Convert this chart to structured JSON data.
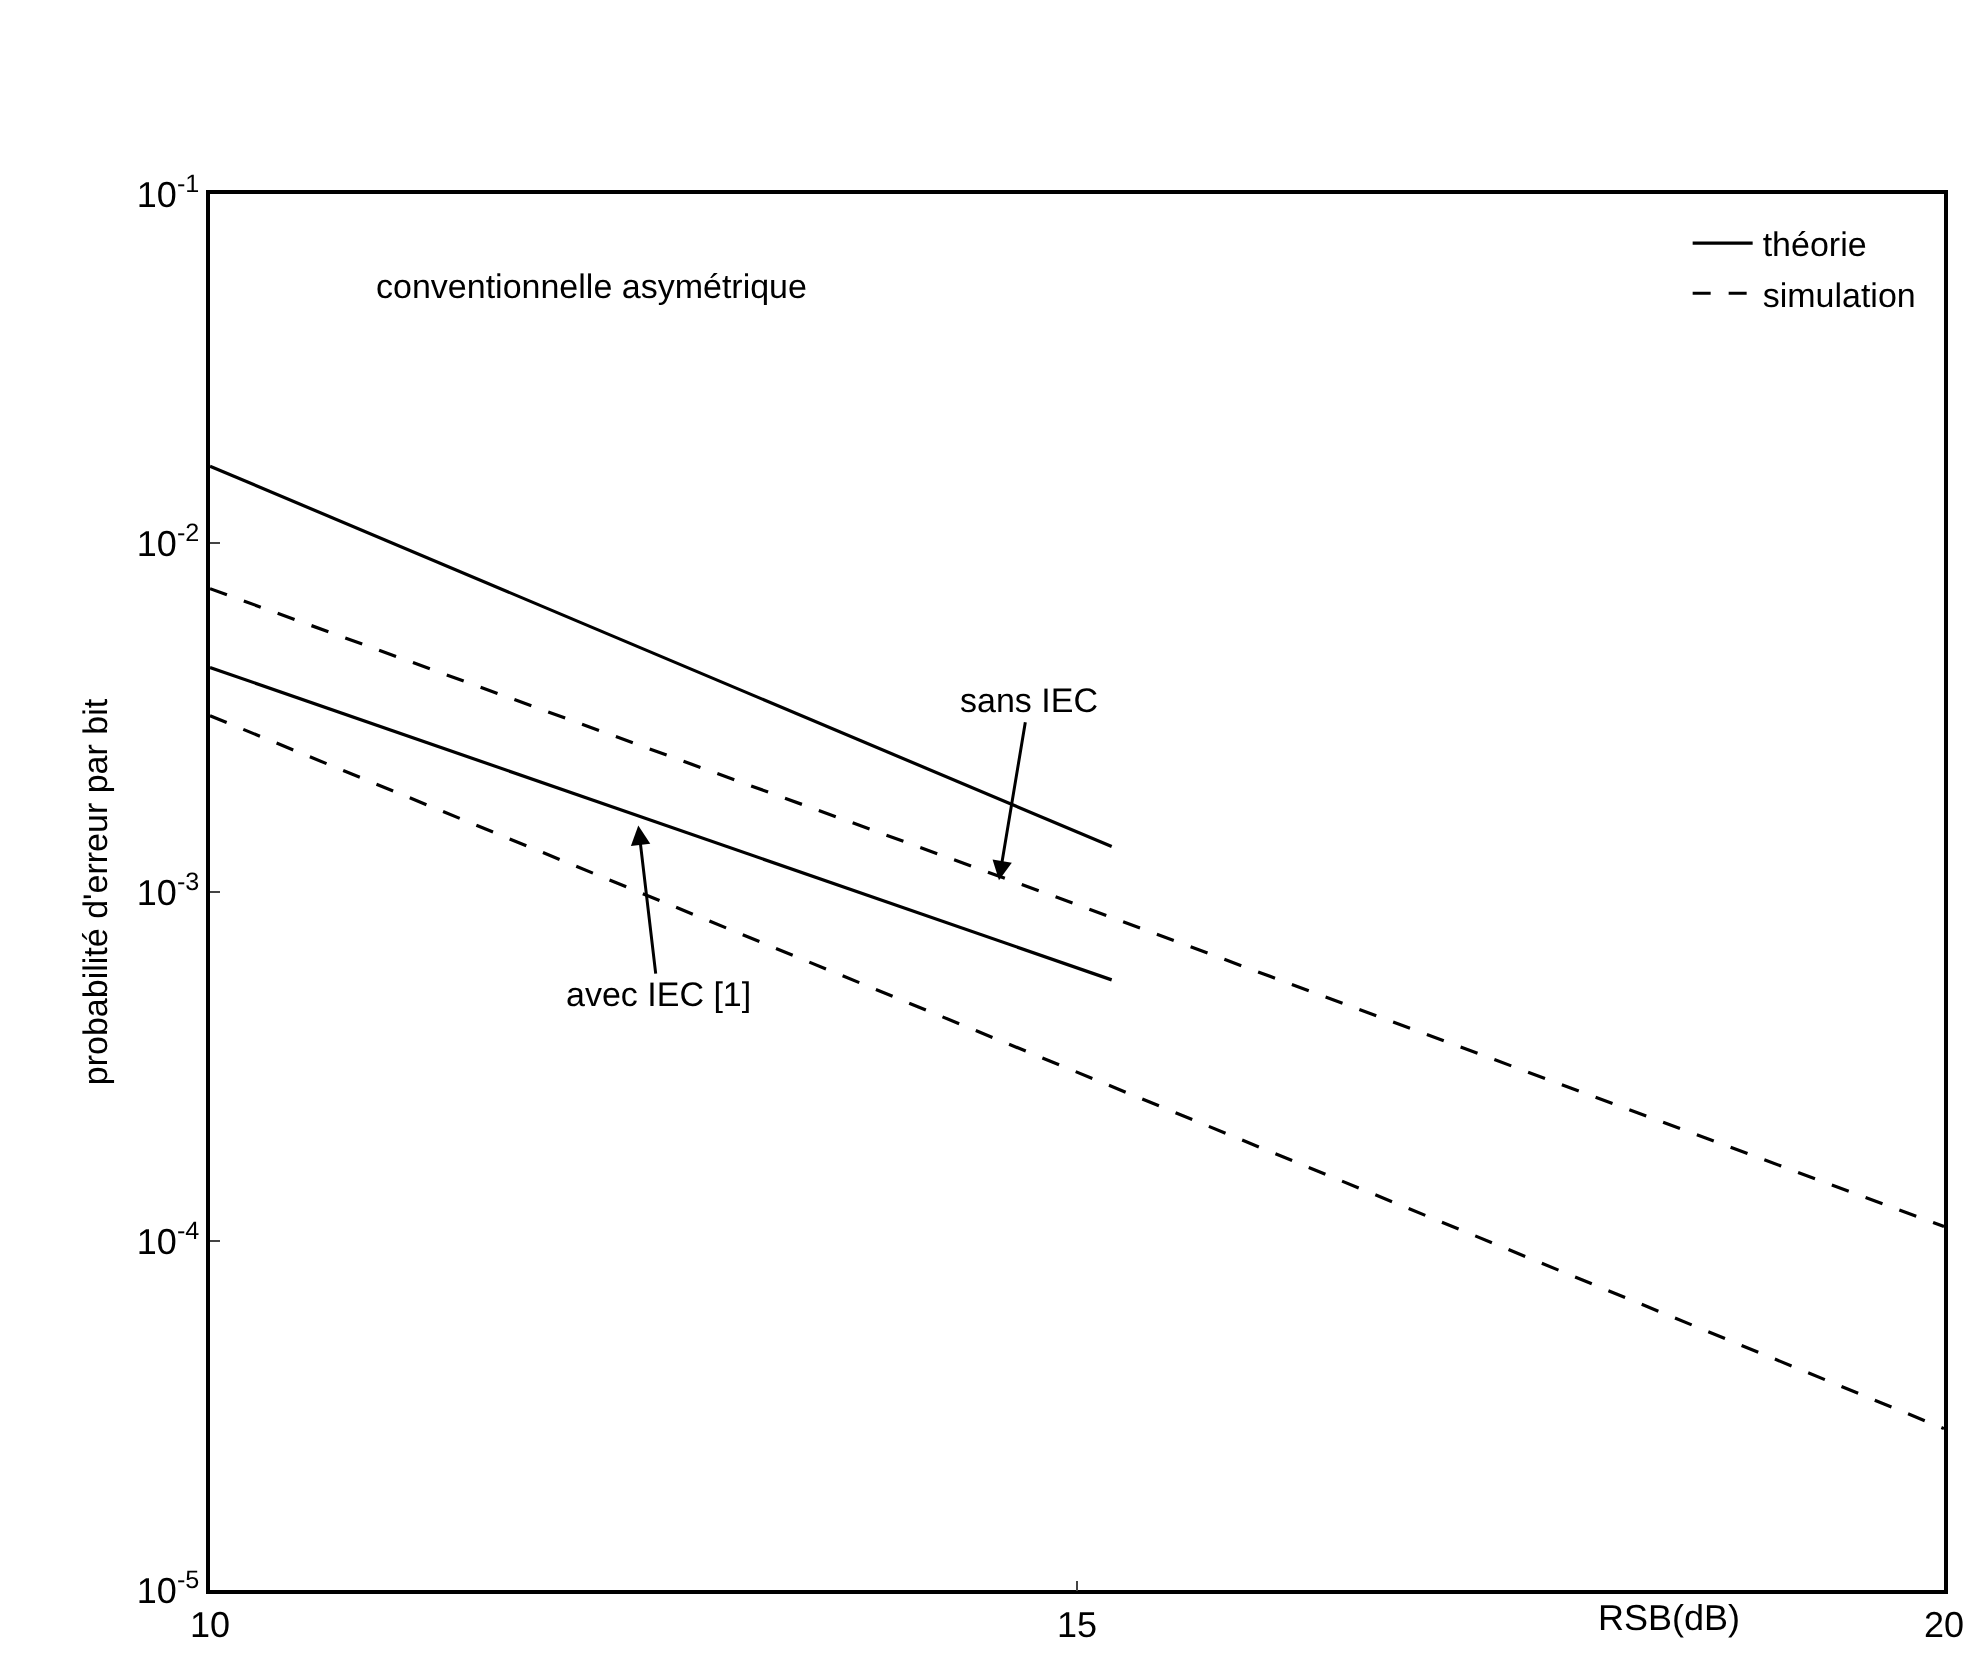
{
  "chart_data": {
    "type": "line",
    "title": "conventionnelle asymétrique",
    "xlabel": "RSB(dB)",
    "ylabel": "probabilité d'erreur par bit",
    "series": [
      {
        "name": "théorie",
        "color": "#000000",
        "line_style": "solid",
        "x": [
          10,
          15.2
        ],
        "values": [
          0.0166,
          0.00135
        ]
      },
      {
        "name": "simulation",
        "color": "#000000",
        "line_style": "dashed",
        "x": [
          10,
          15,
          20
        ],
        "values": [
          0.0074,
          0.00092,
          0.00011
        ]
      },
      {
        "color": "#000000",
        "line_style": "solid",
        "x": [
          10,
          15.2
        ],
        "values": [
          0.0044,
          0.00056
        ]
      },
      {
        "color": "#000000",
        "line_style": "dashed",
        "x": [
          10,
          20
        ],
        "values": [
          0.0032,
          2.9e-05
        ]
      }
    ],
    "annotations": [
      {
        "text": "sans IEC",
        "x": 14.55,
        "y": 0.00108
      },
      {
        "text": "avec IEC [1]",
        "x": 12.47,
        "y": 0.00155
      }
    ],
    "log": "y",
    "xlim": [
      10,
      20
    ],
    "xticks": [
      10,
      15,
      20
    ],
    "ylim": [
      1e-05,
      0.1
    ],
    "yticks": [
      {
        "value": 0.1,
        "label": "10$^{-1}$"
      },
      {
        "value": 0.01,
        "label": "10$^{-2}$"
      },
      {
        "value": 0.001,
        "label": "10$^{-3}$"
      },
      {
        "value": 0.0001,
        "label": "10$^{-4}$"
      },
      {
        "value": 1e-05,
        "label": "10$^{-5}$"
      }
    ],
    "grid": false,
    "legend": "top right",
    "marker": "none"
  }
}
